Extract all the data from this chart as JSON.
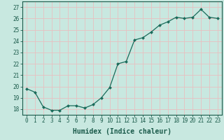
{
  "x": [
    0,
    1,
    2,
    3,
    4,
    5,
    6,
    7,
    8,
    9,
    10,
    11,
    12,
    13,
    14,
    15,
    16,
    17,
    18,
    19,
    20,
    21,
    22,
    23
  ],
  "y": [
    19.8,
    19.5,
    18.2,
    17.9,
    17.9,
    18.3,
    18.3,
    18.1,
    18.4,
    19.0,
    19.9,
    22.0,
    22.2,
    24.1,
    24.3,
    24.8,
    25.4,
    25.7,
    26.1,
    26.0,
    26.1,
    26.8,
    26.1,
    26.0
  ],
  "line_color": "#1a6b5a",
  "marker_color": "#1a6b5a",
  "bg_color": "#c8e8e0",
  "grid_color": "#e8c0c0",
  "xlabel": "Humidex (Indice chaleur)",
  "ylabel": "",
  "ylim": [
    17.5,
    27.5
  ],
  "xlim": [
    -0.5,
    23.5
  ],
  "yticks": [
    18,
    19,
    20,
    21,
    22,
    23,
    24,
    25,
    26,
    27
  ],
  "xticks": [
    0,
    1,
    2,
    3,
    4,
    5,
    6,
    7,
    8,
    9,
    10,
    11,
    12,
    13,
    14,
    15,
    16,
    17,
    18,
    19,
    20,
    21,
    22,
    23
  ],
  "tick_label_fontsize": 5.5,
  "xlabel_fontsize": 7,
  "axis_color": "#1a5a4a",
  "text_color": "#1a5a4a"
}
